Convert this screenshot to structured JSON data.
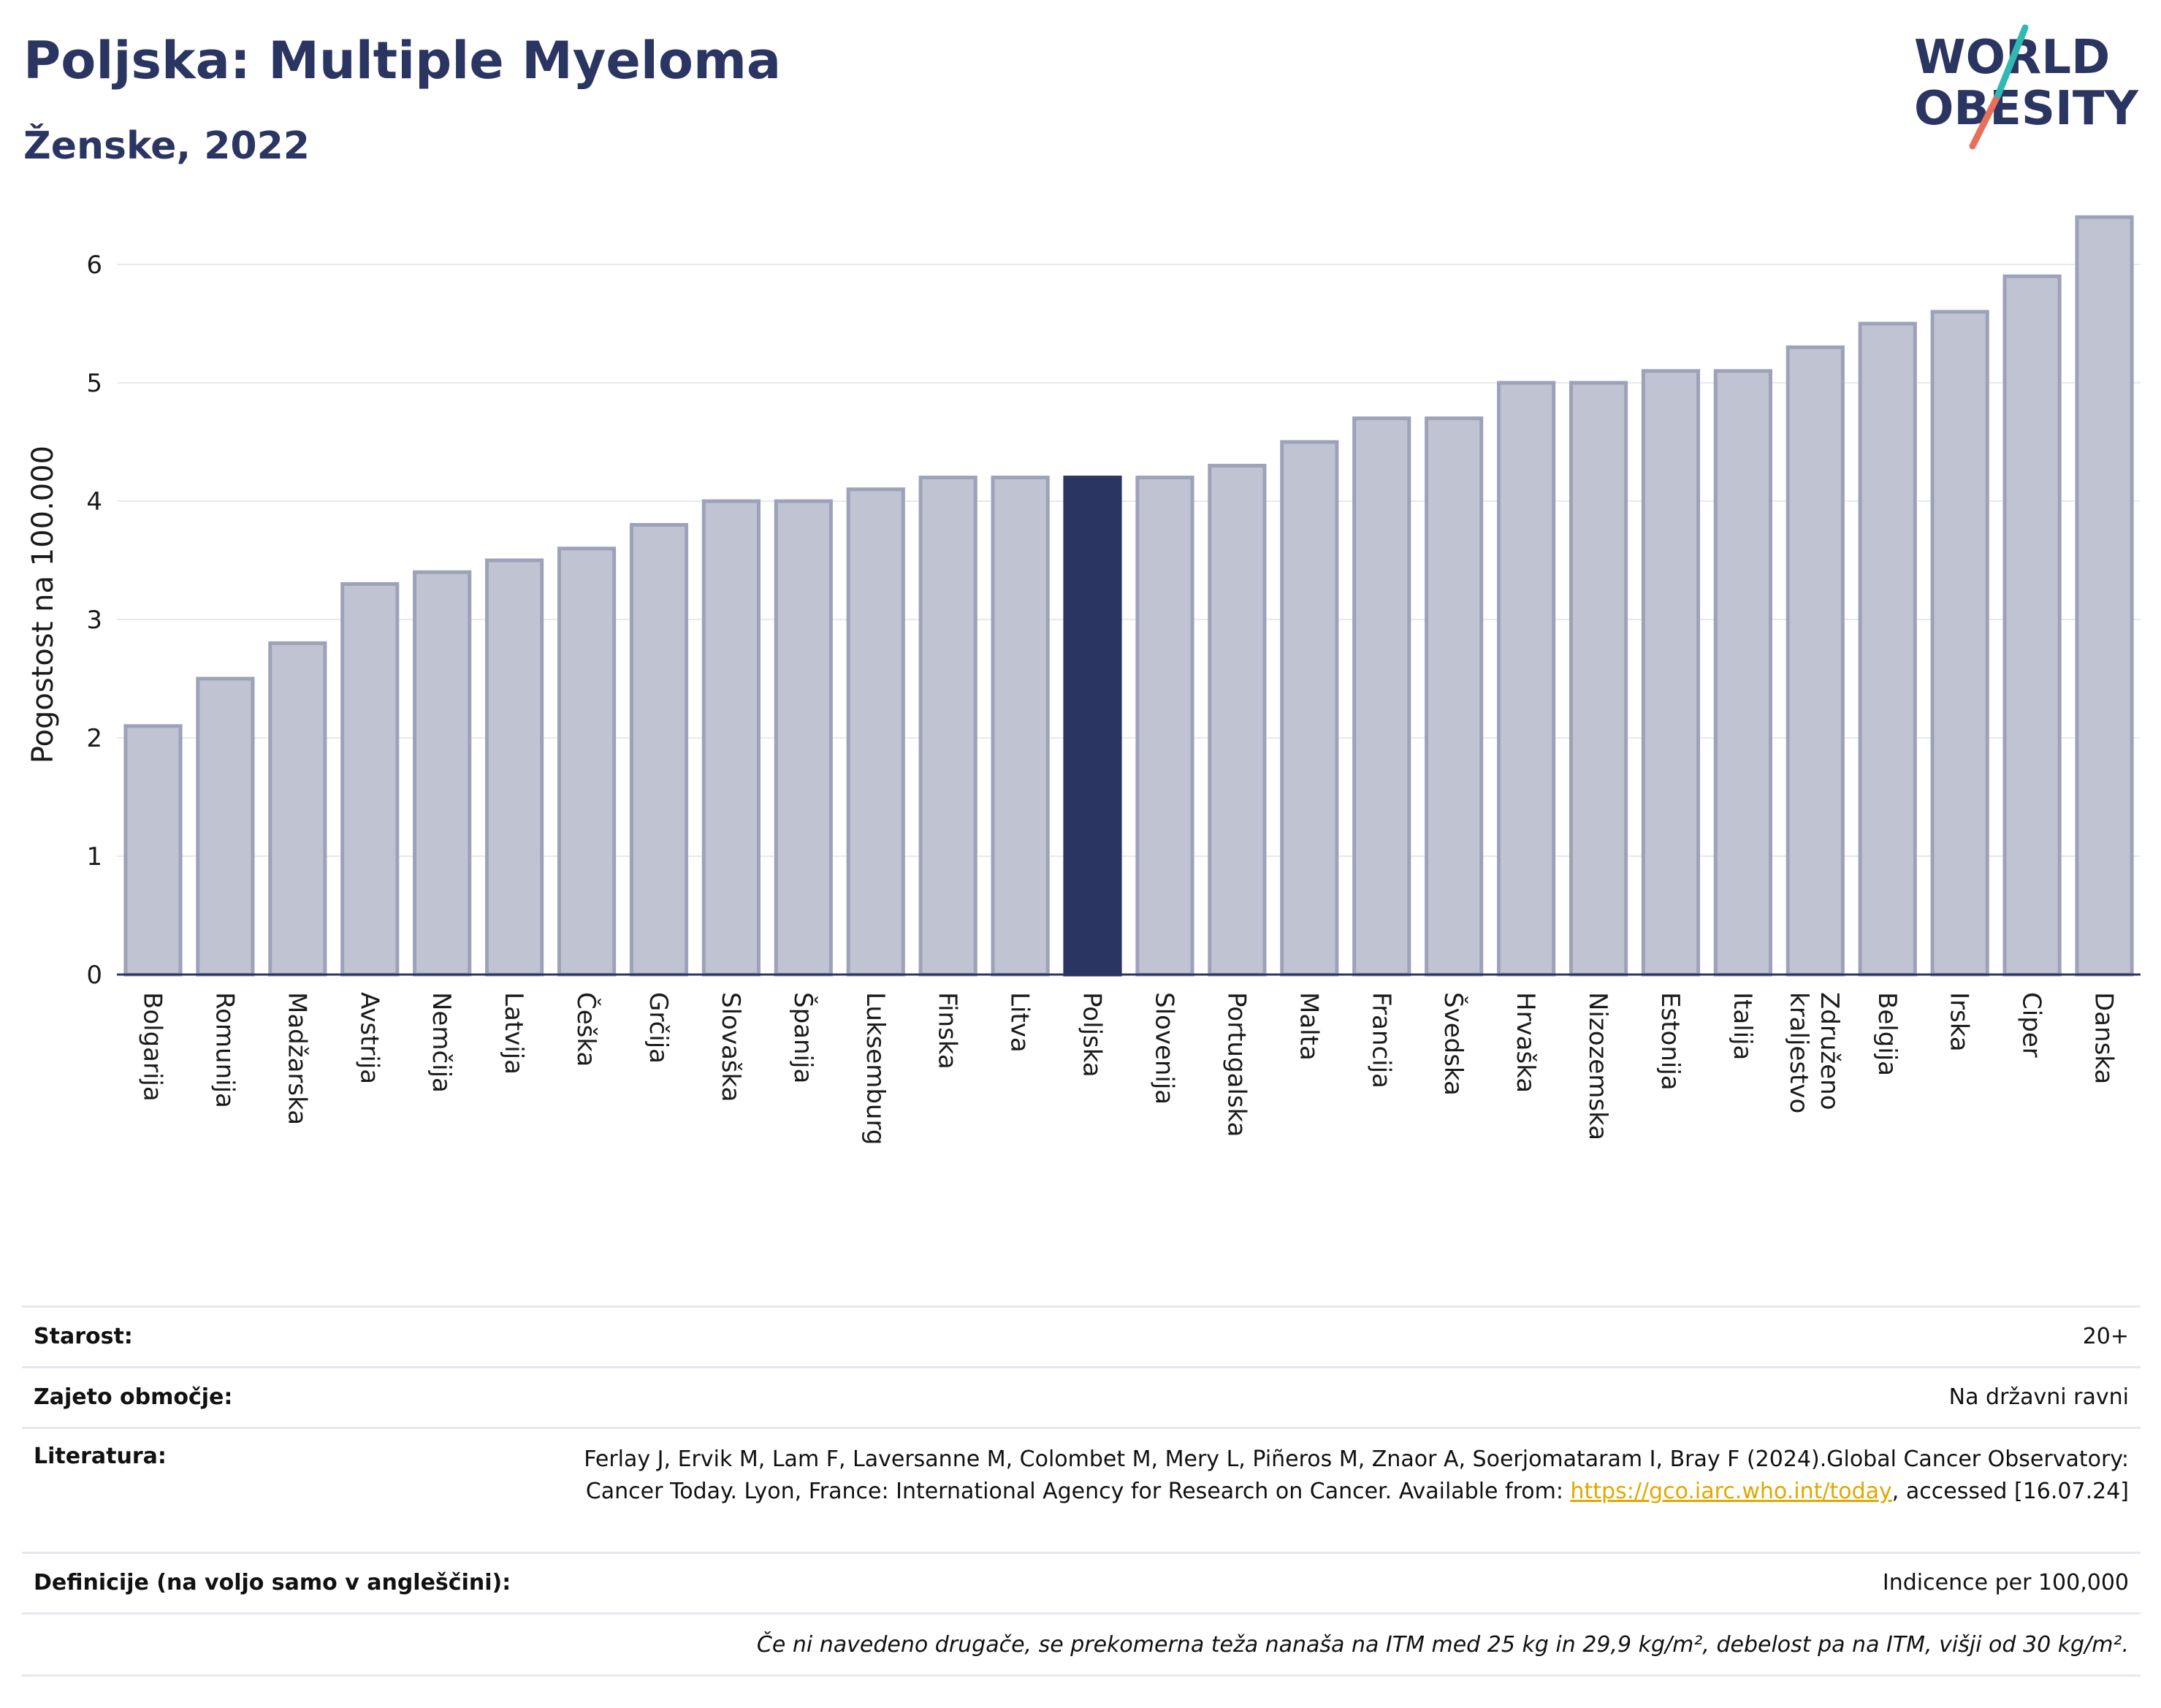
{
  "header": {
    "title": "Poljska: Multiple Myeloma",
    "subtitle": "Ženske, 2022",
    "logo_text_top": "WORLD",
    "logo_text_bottom": "OBESITY"
  },
  "chart_data": {
    "type": "bar",
    "ylabel": "Pogostost na 100.000",
    "xlabel": "",
    "ylim": [
      0,
      6.5
    ],
    "yticks": [
      0,
      1,
      2,
      3,
      4,
      5,
      6
    ],
    "highlight": "Poljska",
    "categories": [
      "Bolgarija",
      "Romunija",
      "Madžarska",
      "Avstrija",
      "Nemčija",
      "Latvija",
      "Češka",
      "Grčija",
      "Slovaška",
      "Španija",
      "Luksemburg",
      "Finska",
      "Litva",
      "Poljska",
      "Slovenija",
      "Portugalska",
      "Malta",
      "Francija",
      "Švedska",
      "Hrvaška",
      "Nizozemska",
      "Estonija",
      "Italija",
      "Združeno kraljestvo",
      "Belgija",
      "Irska",
      "Ciper",
      "Danska"
    ],
    "values": [
      2.1,
      2.5,
      2.8,
      3.3,
      3.4,
      3.5,
      3.6,
      3.8,
      4.0,
      4.0,
      4.1,
      4.2,
      4.2,
      4.2,
      4.2,
      4.3,
      4.5,
      4.7,
      4.7,
      5.0,
      5.0,
      5.1,
      5.1,
      5.3,
      5.5,
      5.6,
      5.9,
      6.4
    ],
    "colors": {
      "bar": "#c0c3d1",
      "bar_border": "#9da2b9",
      "highlight": "#2b3561",
      "grid": "#e8e9ee",
      "axis": "#2b3561"
    }
  },
  "info": {
    "age_label": "Starost:",
    "age_value": "20+",
    "area_label": "Zajeto območje:",
    "area_value": "Na državni ravni",
    "lit_label": "Literatura:",
    "lit_text_1": "Ferlay J, Ervik M, Lam F, Laversanne M, Colombet M, Mery L, Piñeros M, Znaor A, Soerjomataram I, Bray F (2024).Global Cancer Observatory: Cancer Today. Lyon, France: International Agency for Research on Cancer. Available from: ",
    "lit_link": "https://gco.iarc.who.int/today",
    "lit_text_2": ", accessed [16.07.24]",
    "def_label": "Definicije (na voljo samo v angleščini):",
    "def_value": "Indicence per 100,000",
    "note": "Če ni navedeno drugače, se prekomerna teža nanaša na ITM med 25 kg in 29,9 kg/m², debelost pa na ITM, višji od 30 kg/m²."
  }
}
